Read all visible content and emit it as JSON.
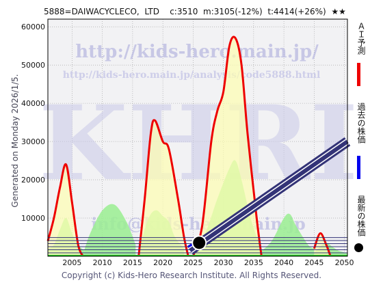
{
  "header": {
    "code_name": "5888=DAIWACYCLECO,  LTD",
    "current": "c:3510",
    "mean": "m:3105(-12%)",
    "target": "t:4414(+26%)",
    "stars": "★★"
  },
  "watermark": {
    "url_main": "http://kids-hero.main.jp/",
    "url_page": "http://kids-hero.main.jp/analysis/code5888.html",
    "logo": "KHRI",
    "email": "info@kids-hero.main.jp"
  },
  "side_text": "Generated on Monday 2026/1/5.",
  "footer": "Copyright (c) Kids-Hero Research Institute. All Rights Reserved.",
  "legend": {
    "ai": "ＡＩ予測",
    "past": "過去の株価",
    "latest": "最新の株価"
  },
  "colors": {
    "background": "#f2f2f4",
    "ai_line": "#ee0000",
    "ai_fill": "#fdfdb0",
    "green_fill": "#9aee90",
    "trend_band": "#333377",
    "past_line": "#0000ee",
    "latest_marker": "#000000"
  },
  "chart_data": {
    "type": "line",
    "xlim": [
      2001,
      2050.5
    ],
    "ylim": [
      0,
      62000
    ],
    "x_ticks": [
      2005,
      2010,
      2015,
      2020,
      2025,
      2030,
      2035,
      2040,
      2045,
      2050
    ],
    "y_ticks": [
      10000,
      20000,
      30000,
      40000,
      50000,
      60000
    ],
    "grid": true,
    "series": [
      {
        "name": "ＡＩ予測",
        "style": "red-line-yellow-fill",
        "segments": [
          [
            [
              2001,
              4000
            ],
            [
              2002,
              10000
            ],
            [
              2003,
              18000
            ],
            [
              2004,
              24000
            ],
            [
              2005,
              14000
            ],
            [
              2006,
              3000
            ],
            [
              2006.8,
              0
            ]
          ],
          [
            [
              2016,
              0
            ],
            [
              2017,
              15000
            ],
            [
              2018,
              32000
            ],
            [
              2018.7,
              35500
            ],
            [
              2020,
              30000
            ],
            [
              2021,
              28000
            ],
            [
              2022.5,
              15000
            ],
            [
              2023.5,
              5000
            ],
            [
              2024.2,
              0
            ]
          ],
          [
            [
              2025,
              0
            ],
            [
              2026.5,
              8000
            ],
            [
              2028,
              30000
            ],
            [
              2029,
              38000
            ],
            [
              2030,
              43000
            ],
            [
              2031,
              55000
            ],
            [
              2032,
              57000
            ],
            [
              2033,
              50000
            ],
            [
              2034,
              32000
            ],
            [
              2035.5,
              10000
            ],
            [
              2036.3,
              0
            ]
          ],
          [
            [
              2045,
              2000
            ],
            [
              2046,
              6000
            ],
            [
              2047,
              3000
            ],
            [
              2047.7,
              0
            ]
          ]
        ]
      },
      {
        "name": "",
        "style": "green-area",
        "segments": [
          [
            [
              2001,
              2000
            ],
            [
              2002,
              3000
            ],
            [
              2003,
              7000
            ],
            [
              2004,
              10000
            ],
            [
              2005,
              6000
            ],
            [
              2006,
              3000
            ],
            [
              2007,
              1500
            ]
          ],
          [
            [
              2007,
              1500
            ],
            [
              2008,
              6000
            ],
            [
              2010,
              12000
            ],
            [
              2012,
              13500
            ],
            [
              2014,
              9000
            ],
            [
              2015.5,
              3000
            ]
          ],
          [
            [
              2016,
              1000
            ],
            [
              2017,
              7000
            ],
            [
              2018,
              11000
            ],
            [
              2019,
              12000
            ],
            [
              2020,
              10500
            ],
            [
              2021,
              9000
            ],
            [
              2022,
              5000
            ],
            [
              2023.5,
              2000
            ]
          ],
          [
            [
              2025,
              1000
            ],
            [
              2027,
              6000
            ],
            [
              2029,
              15000
            ],
            [
              2031,
              23000
            ],
            [
              2032,
              25000
            ],
            [
              2033,
              20000
            ],
            [
              2034.5,
              10000
            ],
            [
              2036,
              3000
            ]
          ],
          [
            [
              2036,
              1000
            ],
            [
              2038,
              4000
            ],
            [
              2040,
              10000
            ],
            [
              2041,
              11000
            ],
            [
              2042,
              8000
            ],
            [
              2044,
              3000
            ],
            [
              2045,
              2000
            ]
          ],
          [
            [
              2045,
              1000
            ],
            [
              2046,
              2500
            ],
            [
              2047,
              3500
            ],
            [
              2048,
              2500
            ],
            [
              2049,
              1500
            ],
            [
              2050.5,
              800
            ]
          ]
        ]
      },
      {
        "name": "トレンド帯",
        "style": "band",
        "from": [
          2024.5,
          1500
        ],
        "to": [
          2050.5,
          30000
        ]
      },
      {
        "name": "過去の株価",
        "style": "blue-line",
        "points": [
          [
            2024.2,
            2500
          ],
          [
            2025,
            3200
          ],
          [
            2026,
            3510
          ]
        ]
      },
      {
        "name": "最新の株価",
        "style": "marker",
        "point": [
          2026,
          3510
        ]
      }
    ],
    "hlines": [
      900,
      1700,
      2500,
      3300,
      4100,
      4900
    ],
    "baseline": 0
  }
}
